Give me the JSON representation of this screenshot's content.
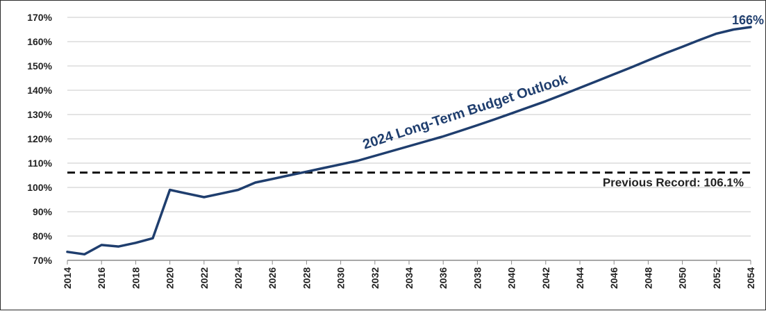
{
  "chart_data": {
    "type": "line",
    "title": "",
    "xlabel": "",
    "ylabel": "",
    "x": [
      2014,
      2015,
      2016,
      2017,
      2018,
      2019,
      2020,
      2021,
      2022,
      2023,
      2024,
      2025,
      2026,
      2027,
      2028,
      2029,
      2030,
      2031,
      2032,
      2033,
      2034,
      2035,
      2036,
      2037,
      2038,
      2039,
      2040,
      2041,
      2042,
      2043,
      2044,
      2045,
      2046,
      2047,
      2048,
      2049,
      2050,
      2051,
      2052,
      2053,
      2054
    ],
    "series": [
      {
        "name": "2024 Long-Term Budget Outlook",
        "values": [
          73.5,
          72.5,
          76.3,
          75.7,
          77.2,
          79.1,
          99.0,
          97.5,
          96.0,
          97.5,
          99.0,
          102.0,
          103.5,
          105.0,
          106.5,
          108.0,
          109.5,
          111.0,
          113.0,
          115.0,
          117.0,
          119.0,
          121.0,
          123.3,
          125.6,
          128.0,
          130.5,
          133.0,
          135.5,
          138.2,
          141.0,
          143.8,
          146.6,
          149.4,
          152.3,
          155.2,
          157.9,
          160.7,
          163.3,
          165.0,
          166.0
        ],
        "color": "#1f3e6e"
      }
    ],
    "reference_line": {
      "value": 106.1,
      "label": "Previous Record: 106.1%",
      "style": "dashed",
      "color": "#111111"
    },
    "end_label": "166%",
    "series_label": "2024 Long-Term Budget Outlook",
    "ylim": [
      70,
      170
    ],
    "xlim": [
      2014,
      2054
    ],
    "y_ticks": [
      "70%",
      "80%",
      "90%",
      "100%",
      "110%",
      "120%",
      "130%",
      "140%",
      "150%",
      "160%",
      "170%"
    ],
    "x_ticks": [
      "2014",
      "2016",
      "2018",
      "2020",
      "2022",
      "2024",
      "2026",
      "2028",
      "2030",
      "2032",
      "2034",
      "2036",
      "2038",
      "2040",
      "2042",
      "2044",
      "2046",
      "2048",
      "2050",
      "2052",
      "2054"
    ],
    "grid": "horizontal",
    "legend": "none"
  }
}
